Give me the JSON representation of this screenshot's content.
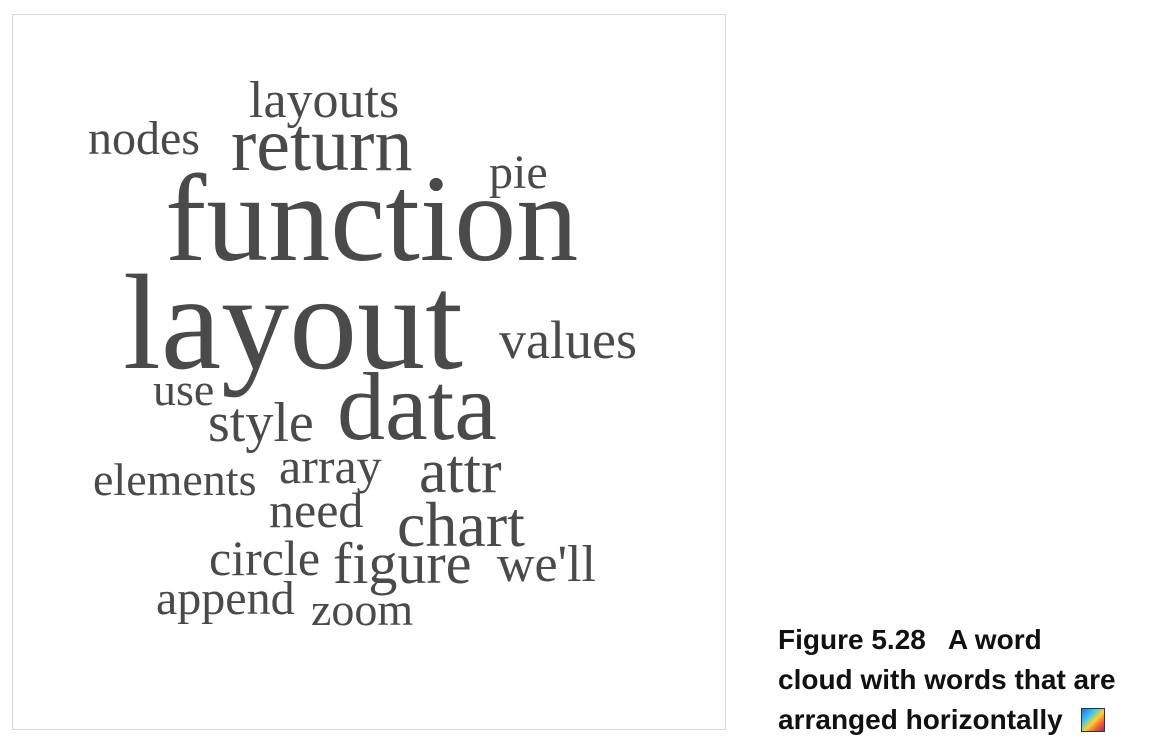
{
  "word_cloud": {
    "words": [
      {
        "text": "layouts"
      },
      {
        "text": "nodes"
      },
      {
        "text": "return"
      },
      {
        "text": "pie"
      },
      {
        "text": "function"
      },
      {
        "text": "layout"
      },
      {
        "text": "values"
      },
      {
        "text": "use"
      },
      {
        "text": "style"
      },
      {
        "text": "data"
      },
      {
        "text": "elements"
      },
      {
        "text": "array"
      },
      {
        "text": "attr"
      },
      {
        "text": "need"
      },
      {
        "text": "chart"
      },
      {
        "text": "circle"
      },
      {
        "text": "figure"
      },
      {
        "text": "we'll"
      },
      {
        "text": "append"
      },
      {
        "text": "zoom"
      }
    ]
  },
  "caption": {
    "figure_number": "Figure 5.28",
    "line1_text": "A word",
    "line2": "cloud with words that are",
    "line3": "arranged horizontally"
  },
  "colors": {
    "word": "#4a4a4a",
    "caption": "#111111",
    "border": "#d9d9d9"
  },
  "icons": {
    "caption_icon": "color-palette-icon"
  }
}
